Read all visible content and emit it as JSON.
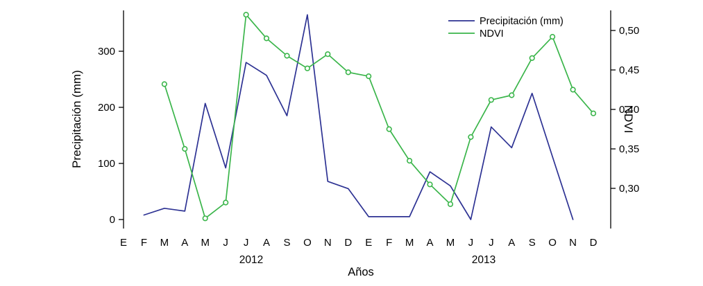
{
  "chart_data": {
    "type": "line",
    "title": "",
    "xlabel": "Años",
    "ylabel_left": "Precipitación (mm)",
    "ylabel_right": "NDVI",
    "grid": false,
    "month_labels": [
      "E",
      "F",
      "M",
      "A",
      "M",
      "J",
      "J",
      "A",
      "S",
      "O",
      "N",
      "D",
      "E",
      "F",
      "M",
      "A",
      "M",
      "J",
      "J",
      "A",
      "S",
      "O",
      "N",
      "D"
    ],
    "year_labels": [
      "2012",
      "2013"
    ],
    "left_axis": {
      "ticks": [
        0,
        100,
        200,
        300
      ],
      "range": [
        0,
        370
      ]
    },
    "right_axis": {
      "ticks": [
        "0,30",
        "0,35",
        "0,40",
        "0,45",
        "0,50"
      ],
      "tick_values": [
        0.3,
        0.35,
        0.4,
        0.45,
        0.5
      ],
      "range": [
        0.26,
        0.53
      ]
    },
    "legend": {
      "position": "top-right",
      "entries": [
        "Precipitación (mm)",
        "NDVI"
      ]
    },
    "series": [
      {
        "name": "Precipitación (mm)",
        "axis": "left",
        "color": "#2d3293",
        "marker": "none",
        "start_index": 1,
        "values": [
          8,
          20,
          15,
          207,
          92,
          280,
          257,
          185,
          365,
          68,
          55,
          5,
          5,
          5,
          85,
          60,
          0,
          165,
          128,
          225,
          112,
          0
        ]
      },
      {
        "name": "NDVI",
        "axis": "right",
        "color": "#3ab54a",
        "marker": "circle",
        "start_index": 2,
        "values": [
          0.432,
          0.35,
          0.262,
          0.282,
          0.52,
          0.49,
          0.468,
          0.452,
          0.47,
          0.447,
          0.442,
          0.375,
          0.335,
          0.305,
          0.28,
          0.365,
          0.412,
          0.418,
          0.465,
          0.492,
          0.425,
          0.395
        ]
      }
    ]
  }
}
